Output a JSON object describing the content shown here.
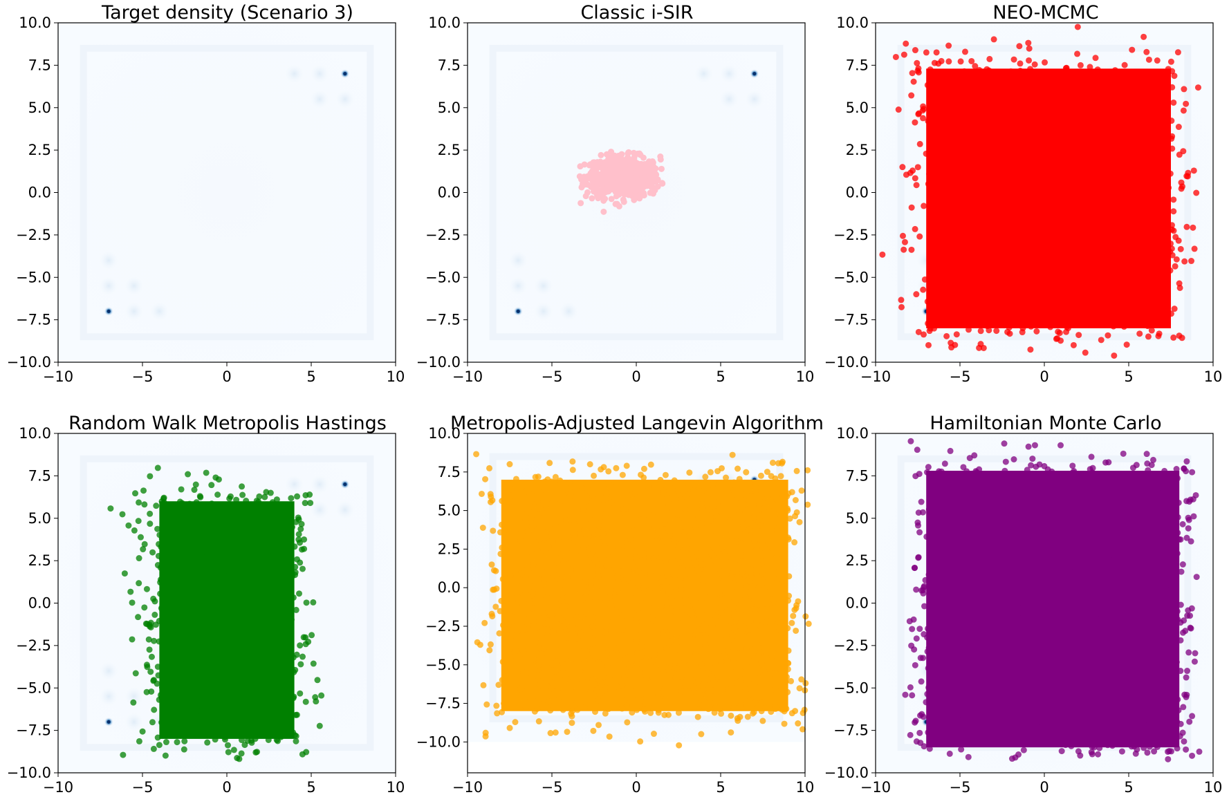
{
  "chart_data": [
    {
      "type": "heatmap",
      "title": "Target density (Scenario 3)",
      "xlim": [
        -10,
        10
      ],
      "ylim": [
        -10,
        10
      ],
      "xticks": [
        "−10",
        "−5",
        "0",
        "5",
        "10"
      ],
      "yticks": [
        "10.0",
        "7.5",
        "5.0",
        "2.5",
        "0.0",
        "−2.5",
        "−5.0",
        "−7.5",
        "−10.0"
      ],
      "colormap": "Blues",
      "modes": [
        {
          "x": 7,
          "y": 7
        },
        {
          "x": -7,
          "y": -7
        }
      ],
      "faint_modes": [
        {
          "x": 5.5,
          "y": 7
        },
        {
          "x": 7,
          "y": 5.5
        },
        {
          "x": -7,
          "y": -5.5
        },
        {
          "x": -5.5,
          "y": -7
        },
        {
          "x": 4,
          "y": 7
        },
        {
          "x": -7,
          "y": -4
        },
        {
          "x": -4,
          "y": -7
        },
        {
          "x": 5.5,
          "y": 5.5
        },
        {
          "x": -5.5,
          "y": -5.5
        }
      ],
      "samples": null
    },
    {
      "type": "scatter",
      "title": "Classic i-SIR",
      "xlim": [
        -10,
        10
      ],
      "ylim": [
        -10,
        10
      ],
      "xticks": [
        "−10",
        "−5",
        "0",
        "5",
        "10"
      ],
      "yticks": [
        "10.0",
        "7.5",
        "5.0",
        "2.5",
        "0.0",
        "−2.5",
        "−5.0",
        "−7.5",
        "−10.0"
      ],
      "background": "target-density",
      "sample_color": "#ffc0cb",
      "sample_region": {
        "x_range": [
          -3.7,
          1.6
        ],
        "y_range": [
          -1.2,
          2.4
        ],
        "center": [
          -0.8,
          0.9
        ]
      }
    },
    {
      "type": "scatter",
      "title": "NEO-MCMC",
      "xlim": [
        -10,
        10
      ],
      "ylim": [
        -10,
        10
      ],
      "xticks": [
        "−10",
        "−5",
        "0",
        "5",
        "10"
      ],
      "yticks": [
        "10.0",
        "7.5",
        "5.0",
        "2.5",
        "0.0",
        "−2.5",
        "−5.0",
        "−7.5",
        "−10.0"
      ],
      "background": "target-density",
      "sample_color": "#ff0000",
      "sample_region": {
        "x_range": [
          -10,
          9.5
        ],
        "y_range": [
          -9.7,
          9.9
        ],
        "core_x": [
          -7,
          7.5
        ],
        "core_y": [
          -8,
          7.3
        ]
      }
    },
    {
      "type": "scatter",
      "title": "Random Walk Metropolis Hastings",
      "xlim": [
        -10,
        10
      ],
      "ylim": [
        -10,
        10
      ],
      "xticks": [
        "−10",
        "−5",
        "0",
        "5",
        "10"
      ],
      "yticks": [
        "10.0",
        "7.5",
        "5.0",
        "2.5",
        "0.0",
        "−2.5",
        "−5.0",
        "−7.5",
        "−10.0"
      ],
      "background": "target-density",
      "sample_color": "#008000",
      "sample_region": {
        "x_range": [
          -7.9,
          6.4
        ],
        "y_range": [
          -9.2,
          8.6
        ],
        "core_x": [
          -4,
          4
        ],
        "core_y": [
          -8,
          6
        ]
      }
    },
    {
      "type": "scatter",
      "title": "Metropolis-Adjusted Langevin Algorithm",
      "xlim": [
        -10,
        10
      ],
      "ylim": [
        -12,
        10
      ],
      "xticks": [
        "−10",
        "−5",
        "0",
        "5",
        "10"
      ],
      "yticks": [
        "10.0",
        "7.5",
        "5.0",
        "2.5",
        "0.0",
        "−2.5",
        "−5.0",
        "−7.5",
        "−10.0"
      ],
      "background": "target-density",
      "sample_color": "#ffa500",
      "sample_region": {
        "x_range": [
          -9.5,
          10.3
        ],
        "y_range": [
          -10.5,
          8.8
        ],
        "core_x": [
          -8,
          9
        ],
        "core_y": [
          -8,
          7
        ]
      }
    },
    {
      "type": "scatter",
      "title": "Hamiltonian Monte Carlo",
      "xlim": [
        -10,
        10
      ],
      "ylim": [
        -10,
        10
      ],
      "xticks": [
        "−10",
        "−5",
        "0",
        "5",
        "10"
      ],
      "yticks": [
        "10.0",
        "7.5",
        "5.0",
        "2.5",
        "0.0",
        "−2.5",
        "−5.0",
        "−7.5",
        "−10.0"
      ],
      "background": "target-density",
      "sample_color": "#800080",
      "sample_region": {
        "x_range": [
          -8.3,
          9.2
        ],
        "y_range": [
          -9.2,
          9.6
        ],
        "core_x": [
          -7,
          8
        ],
        "core_y": [
          -8.5,
          7.8
        ]
      }
    }
  ]
}
